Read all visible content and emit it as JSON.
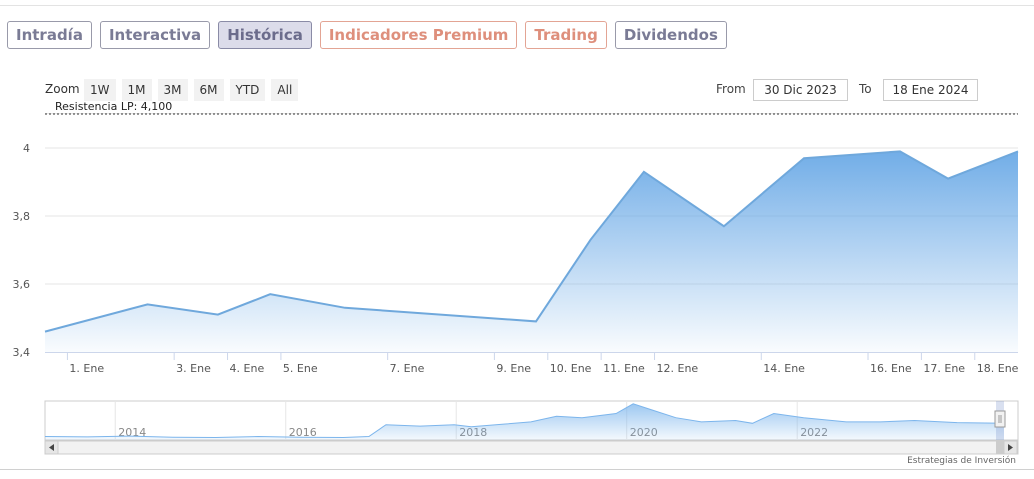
{
  "tabs": [
    {
      "label": "Intradía",
      "state": "normal"
    },
    {
      "label": "Interactiva",
      "state": "normal"
    },
    {
      "label": "Histórica",
      "state": "active"
    },
    {
      "label": "Indicadores Premium",
      "state": "premium"
    },
    {
      "label": "Trading",
      "state": "premium"
    },
    {
      "label": "Dividendos",
      "state": "normal"
    }
  ],
  "zoom": {
    "label": "Zoom",
    "buttons": [
      "1W",
      "1M",
      "3M",
      "6M",
      "YTD",
      "All"
    ]
  },
  "range": {
    "from_label": "From",
    "from_value": "30 Dic 2023",
    "to_label": "To",
    "to_value": "18 Ene 2024"
  },
  "credits": "Estrategias de Inversión",
  "colors": {
    "line": "#6fa8dc",
    "area_top": "#7cb5ec",
    "tab_text": "#7a7b95",
    "premium_text": "#de8f7c"
  },
  "chart_data": {
    "type": "area",
    "title": "",
    "xlabel": "",
    "ylabel": "",
    "ylim": [
      3.4,
      4.1
    ],
    "y_ticks": [
      3.4,
      3.6,
      3.8,
      4.0
    ],
    "y_tick_labels": [
      "3,4",
      "3,6",
      "3,8",
      "4"
    ],
    "x_ticks": [
      {
        "label": "1. Ene",
        "day": 1
      },
      {
        "label": "3. Ene",
        "day": 3
      },
      {
        "label": "4. Ene",
        "day": 4
      },
      {
        "label": "5. Ene",
        "day": 5
      },
      {
        "label": "7. Ene",
        "day": 7
      },
      {
        "label": "9. Ene",
        "day": 9
      },
      {
        "label": "10. Ene",
        "day": 10
      },
      {
        "label": "11. Ene",
        "day": 11
      },
      {
        "label": "12. Ene",
        "day": 12
      },
      {
        "label": "14. Ene",
        "day": 14
      },
      {
        "label": "16. Ene",
        "day": 16
      },
      {
        "label": "17. Ene",
        "day": 17
      },
      {
        "label": "18. Ene",
        "day": 18
      }
    ],
    "x_range_days": [
      0.58,
      18.81
    ],
    "series": [
      {
        "points": [
          {
            "day": 0.58,
            "value": 3.46
          },
          {
            "day": 2.5,
            "value": 3.54
          },
          {
            "day": 3.82,
            "value": 3.51
          },
          {
            "day": 4.8,
            "value": 3.57
          },
          {
            "day": 6.2,
            "value": 3.53
          },
          {
            "day": 9.78,
            "value": 3.49
          },
          {
            "day": 10.8,
            "value": 3.73
          },
          {
            "day": 11.8,
            "value": 3.93
          },
          {
            "day": 13.3,
            "value": 3.77
          },
          {
            "day": 14.8,
            "value": 3.97
          },
          {
            "day": 16.6,
            "value": 3.99
          },
          {
            "day": 17.5,
            "value": 3.91
          },
          {
            "day": 18.81,
            "value": 3.99
          }
        ]
      }
    ],
    "plot_lines": [
      {
        "label": "Resistencia LP: 4,100",
        "value": 4.1,
        "style": "dashed"
      }
    ],
    "navigator": {
      "x_tick_labels": [
        "2014",
        "2016",
        "2018",
        "2020",
        "2022"
      ],
      "x_ticks": [
        2013.8,
        2015.8,
        2017.8,
        2019.8,
        2021.8
      ],
      "x_range": [
        2012.8,
        2024.05
      ],
      "ylim": [
        2.0,
        4.8
      ],
      "series": [
        {
          "x": 2012.8,
          "y": 2.25
        },
        {
          "x": 2013.3,
          "y": 2.22
        },
        {
          "x": 2013.8,
          "y": 2.28
        },
        {
          "x": 2014.3,
          "y": 2.2
        },
        {
          "x": 2014.8,
          "y": 2.18
        },
        {
          "x": 2015.3,
          "y": 2.25
        },
        {
          "x": 2015.8,
          "y": 2.2
        },
        {
          "x": 2016.3,
          "y": 2.18
        },
        {
          "x": 2016.6,
          "y": 2.25
        },
        {
          "x": 2016.8,
          "y": 3.1
        },
        {
          "x": 2017.2,
          "y": 3.0
        },
        {
          "x": 2017.6,
          "y": 3.1
        },
        {
          "x": 2017.8,
          "y": 2.95
        },
        {
          "x": 2018.2,
          "y": 3.15
        },
        {
          "x": 2018.5,
          "y": 3.3
        },
        {
          "x": 2018.8,
          "y": 3.7
        },
        {
          "x": 2019.1,
          "y": 3.6
        },
        {
          "x": 2019.5,
          "y": 3.9
        },
        {
          "x": 2019.7,
          "y": 4.6
        },
        {
          "x": 2019.9,
          "y": 4.2
        },
        {
          "x": 2020.2,
          "y": 3.6
        },
        {
          "x": 2020.5,
          "y": 3.3
        },
        {
          "x": 2020.9,
          "y": 3.4
        },
        {
          "x": 2021.1,
          "y": 3.2
        },
        {
          "x": 2021.35,
          "y": 3.9
        },
        {
          "x": 2021.7,
          "y": 3.6
        },
        {
          "x": 2022.2,
          "y": 3.3
        },
        {
          "x": 2022.6,
          "y": 3.3
        },
        {
          "x": 2023.0,
          "y": 3.4
        },
        {
          "x": 2023.5,
          "y": 3.25
        },
        {
          "x": 2024.05,
          "y": 3.2
        }
      ]
    }
  }
}
